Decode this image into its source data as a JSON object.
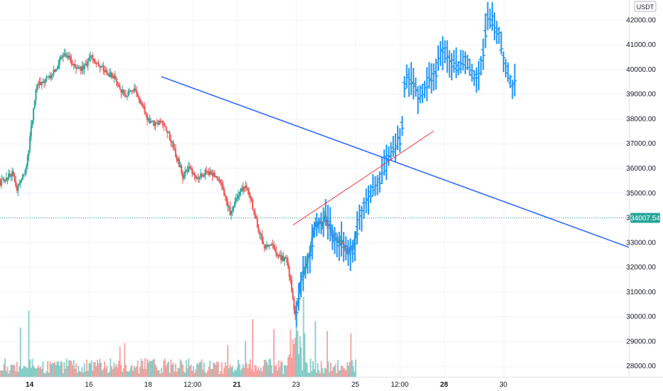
{
  "chart_data": {
    "type": "candlestick",
    "currency_label": "USDT",
    "current_price_label": "34007.54",
    "current_price": 34007.54,
    "y_ticks": [
      28000,
      29000,
      30000,
      31000,
      32000,
      33000,
      34000,
      35000,
      36000,
      37000,
      38000,
      39000,
      40000,
      41000,
      42000
    ],
    "y_tick_labels": [
      "28000.00",
      "29000.00",
      "30000.00",
      "31000.00",
      "32000.00",
      "33000.00",
      "34000.00",
      "35000.00",
      "36000.00",
      "37000.00",
      "38000.00",
      "39000.00",
      "40000.00",
      "41000.00",
      "42000.00"
    ],
    "ylim": [
      27560,
      42800
    ],
    "x_ticks": [
      {
        "label": "14",
        "t": 14.0,
        "major": true
      },
      {
        "label": "16",
        "t": 16.0,
        "major": false
      },
      {
        "label": "18",
        "t": 18.0,
        "major": false
      },
      {
        "label": "12:00",
        "t": 19.5,
        "major": false
      },
      {
        "label": "21",
        "t": 21.0,
        "major": true
      },
      {
        "label": "23",
        "t": 23.0,
        "major": false
      },
      {
        "label": "25",
        "t": 25.0,
        "major": false
      },
      {
        "label": "12:00",
        "t": 26.5,
        "major": false
      },
      {
        "label": "28",
        "t": 28.0,
        "major": true
      },
      {
        "label": "30",
        "t": 30.0,
        "major": false
      }
    ],
    "xlim": [
      13.0,
      34.24
    ],
    "price_path": [
      [
        13.0,
        35400
      ],
      [
        13.45,
        35800
      ],
      [
        13.6,
        35100
      ],
      [
        13.9,
        35900
      ],
      [
        14.05,
        37300
      ],
      [
        14.25,
        39300
      ],
      [
        14.5,
        39500
      ],
      [
        14.75,
        39700
      ],
      [
        15.0,
        40200
      ],
      [
        15.2,
        40700
      ],
      [
        15.5,
        40200
      ],
      [
        15.8,
        40000
      ],
      [
        16.1,
        40500
      ],
      [
        16.35,
        40200
      ],
      [
        16.6,
        39900
      ],
      [
        16.9,
        39700
      ],
      [
        17.1,
        39100
      ],
      [
        17.3,
        39000
      ],
      [
        17.6,
        39200
      ],
      [
        17.8,
        38600
      ],
      [
        18.0,
        38000
      ],
      [
        18.25,
        37800
      ],
      [
        18.5,
        37900
      ],
      [
        18.75,
        37300
      ],
      [
        19.0,
        36400
      ],
      [
        19.2,
        35700
      ],
      [
        19.45,
        36000
      ],
      [
        19.7,
        35600
      ],
      [
        20.0,
        35900
      ],
      [
        20.3,
        35700
      ],
      [
        20.55,
        35200
      ],
      [
        20.8,
        34200
      ],
      [
        21.1,
        35000
      ],
      [
        21.35,
        35300
      ],
      [
        21.55,
        34500
      ],
      [
        21.7,
        33800
      ],
      [
        21.95,
        32800
      ],
      [
        22.2,
        32900
      ],
      [
        22.45,
        32400
      ],
      [
        22.7,
        32300
      ],
      [
        22.85,
        31400
      ],
      [
        23.0,
        30000
      ],
      [
        23.15,
        31300
      ],
      [
        23.3,
        32000
      ],
      [
        23.5,
        32700
      ],
      [
        23.65,
        33800
      ],
      [
        23.85,
        33700
      ],
      [
        24.0,
        34000
      ],
      [
        24.2,
        33500
      ],
      [
        24.4,
        32900
      ],
      [
        24.55,
        33100
      ],
      [
        24.75,
        32500
      ],
      [
        24.95,
        32800
      ],
      [
        25.1,
        33800
      ],
      [
        25.3,
        34600
      ],
      [
        25.55,
        35100
      ],
      [
        25.75,
        35400
      ],
      [
        25.9,
        35700
      ],
      [
        26.0,
        36200
      ],
      [
        26.2,
        36700
      ],
      [
        26.4,
        37000
      ],
      [
        26.55,
        37200
      ],
      [
        26.65,
        39400
      ],
      [
        26.8,
        39600
      ],
      [
        26.95,
        39500
      ],
      [
        27.15,
        38800
      ],
      [
        27.35,
        39300
      ],
      [
        27.55,
        39600
      ],
      [
        27.7,
        39800
      ],
      [
        27.85,
        40600
      ],
      [
        28.05,
        40700
      ],
      [
        28.3,
        40200
      ],
      [
        28.5,
        40000
      ],
      [
        28.7,
        40400
      ],
      [
        28.9,
        40000
      ],
      [
        29.1,
        39400
      ],
      [
        29.3,
        40600
      ],
      [
        29.45,
        42200
      ],
      [
        29.65,
        41900
      ],
      [
        29.85,
        41400
      ],
      [
        30.0,
        40400
      ],
      [
        30.15,
        39800
      ],
      [
        30.3,
        39200
      ],
      [
        30.45,
        39700
      ]
    ],
    "trendlines": [
      {
        "color": "#2962ff",
        "from": [
          18.45,
          39700
        ],
        "to": [
          34.24,
          32800
        ]
      },
      {
        "color": "#f23645",
        "from": [
          22.9,
          33700
        ],
        "to": [
          27.65,
          37500
        ]
      }
    ],
    "colors": {
      "up": "#26a69a",
      "down": "#ef5350",
      "bar": "#2196f3",
      "grid": "#f0f3fa",
      "price_line": "#26a69a",
      "price_tag_bg": "#26a69a"
    },
    "grid": true
  }
}
